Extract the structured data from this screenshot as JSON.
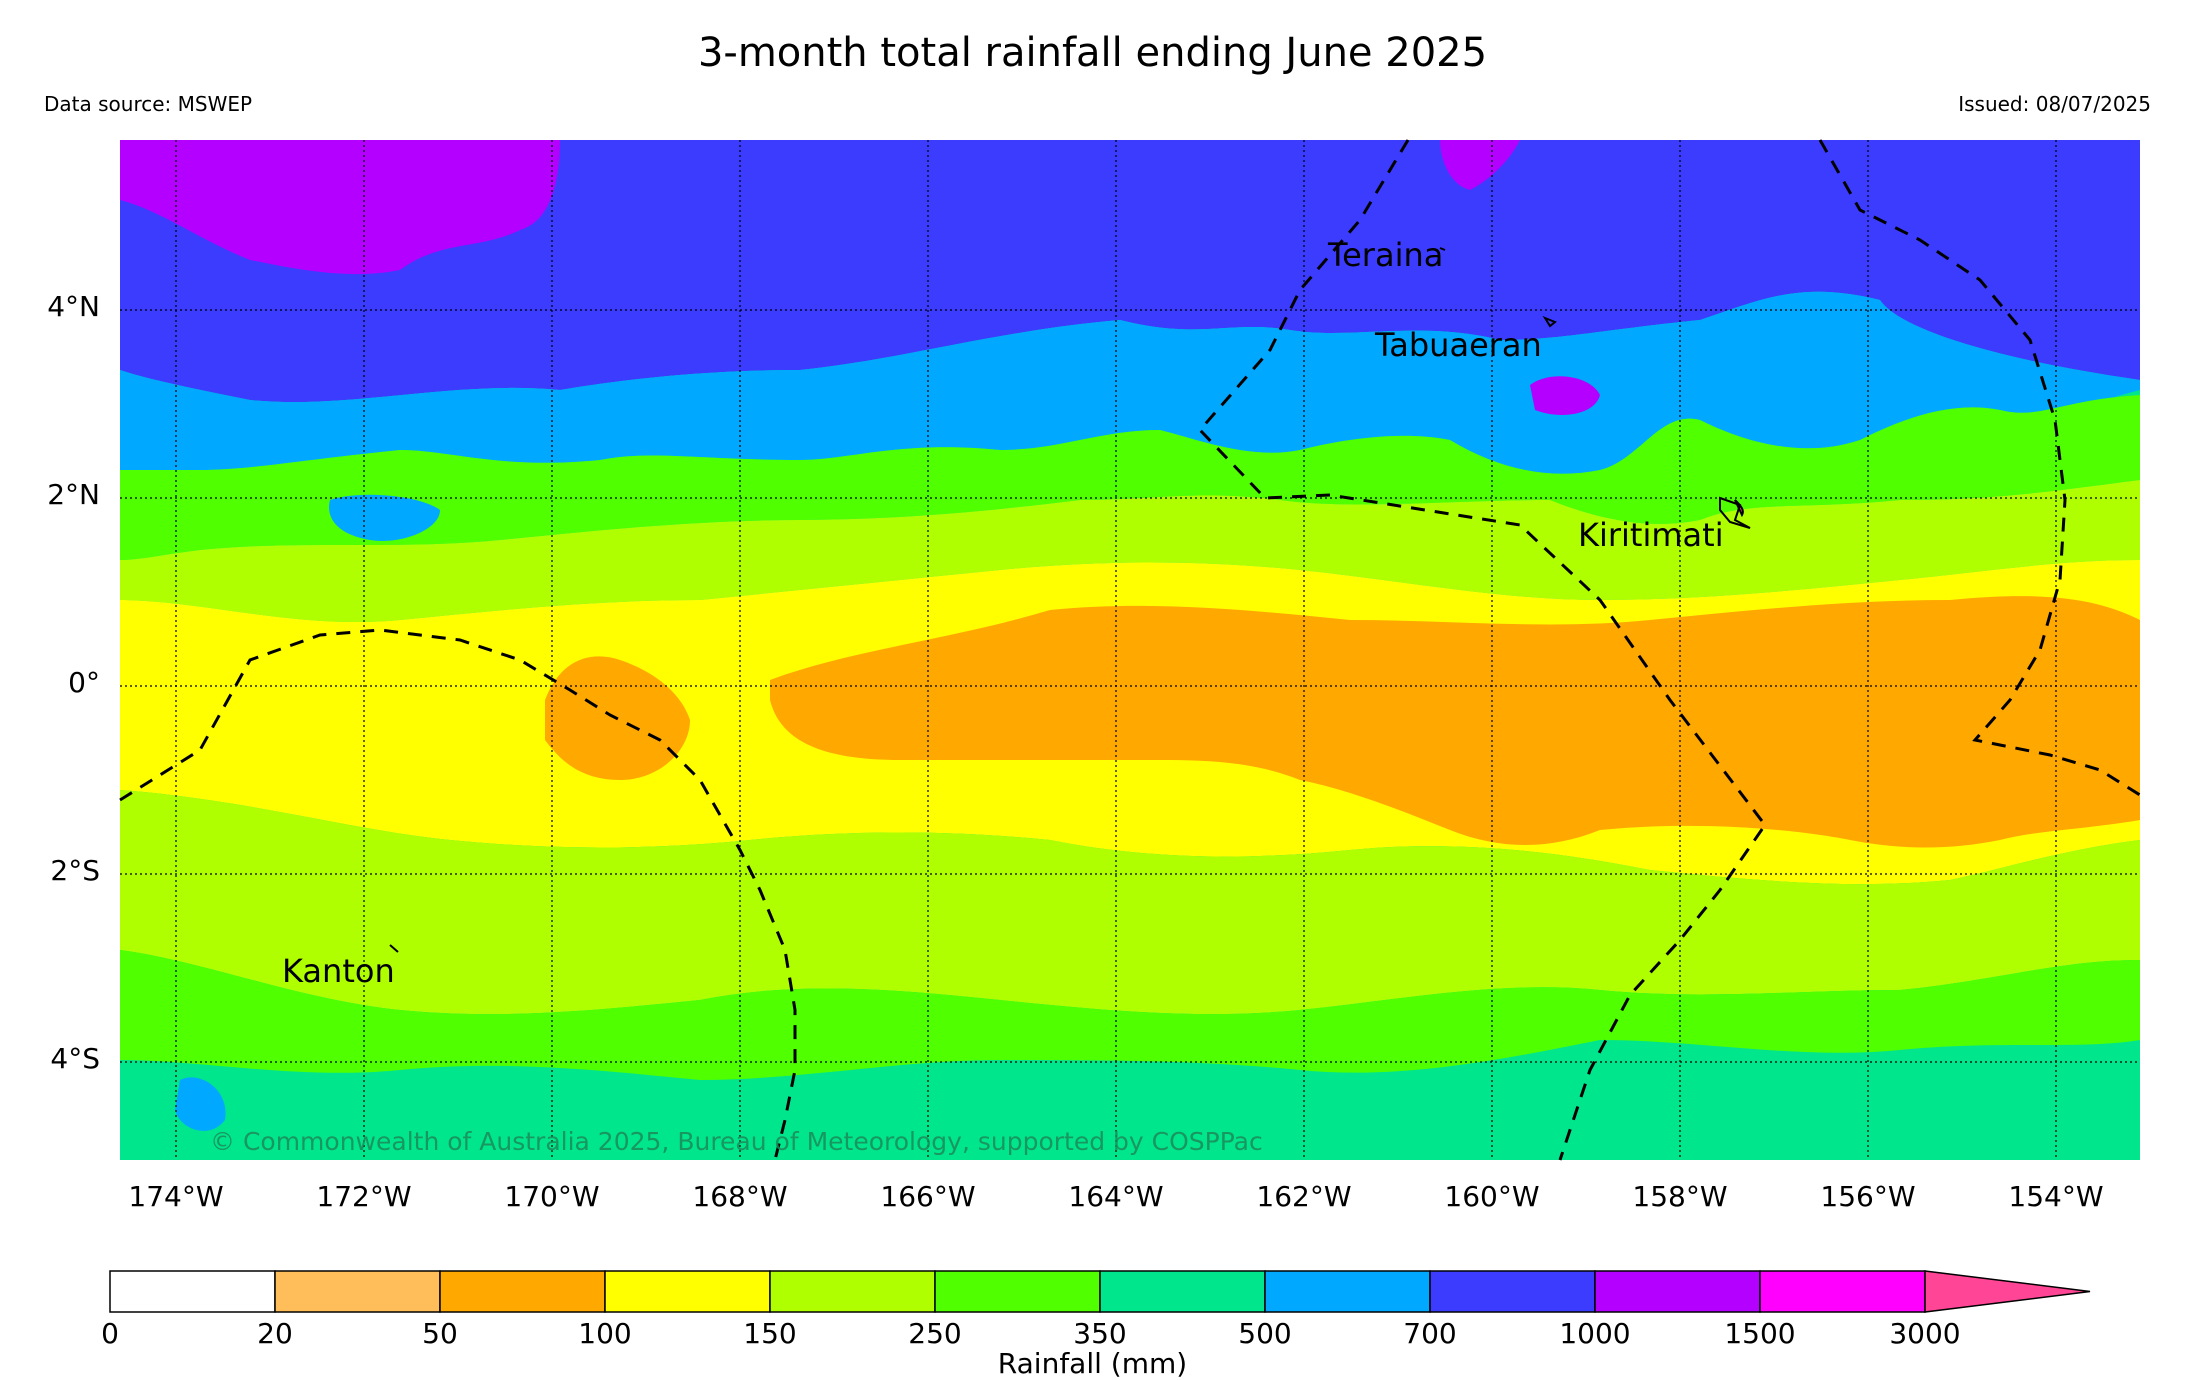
{
  "header": {
    "title": "3-month total rainfall ending June 2025",
    "source": "Data source: MSWEP",
    "issued": "Issued: 08/07/2025"
  },
  "map": {
    "lat_labels": [
      "4°N",
      "2°N",
      "0°",
      "2°S",
      "4°S"
    ],
    "lon_labels": [
      "174°W",
      "172°W",
      "170°W",
      "168°W",
      "166°W",
      "164°W",
      "162°W",
      "160°W",
      "158°W",
      "156°W",
      "154°W"
    ],
    "places": [
      "Teraina",
      "Tabuaeran",
      "Kiritimati",
      "Kanton"
    ],
    "copyright": "© Commonwealth of Australia 2025, Bureau of Meteorology, supported by COSPPac"
  },
  "colorbar": {
    "title": "Rainfall (mm)",
    "ticks": [
      "0",
      "20",
      "50",
      "100",
      "150",
      "250",
      "350",
      "500",
      "700",
      "1000",
      "1500",
      "3000"
    ],
    "colors": [
      "#ffffff",
      "#ffbe5a",
      "#ffa800",
      "#ffff00",
      "#b0ff00",
      "#50ff00",
      "#00e68c",
      "#00a8ff",
      "#3c3cff",
      "#b400ff",
      "#ff00ff",
      "#ff4696"
    ]
  }
}
